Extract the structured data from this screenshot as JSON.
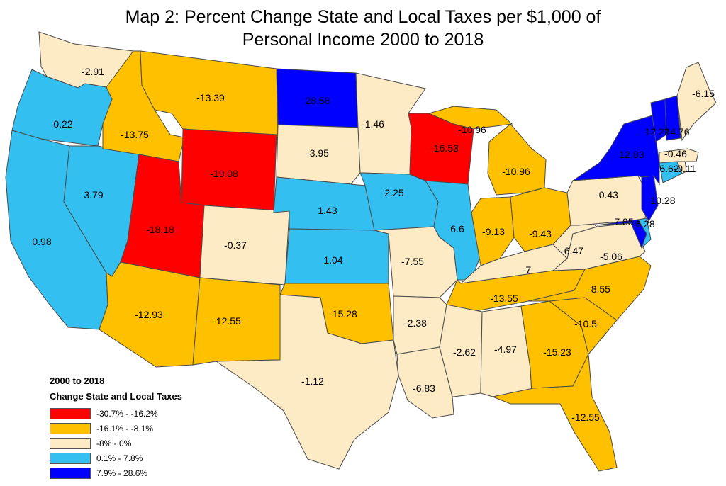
{
  "title_line1": "Map 2: Percent Change State and Local Taxes per $1,000 of",
  "title_line2": "Personal Income 2000 to 2018",
  "legend": {
    "heading1": "2000 to 2018",
    "heading2": "Change State and Local Taxes",
    "classes": [
      {
        "label": "-30.7% - -16.2%",
        "color": "#ff0000"
      },
      {
        "label": "-16.1% - -8.1%",
        "color": "#ffc000"
      },
      {
        "label": "-8% - 0%",
        "color": "#fdebc6"
      },
      {
        "label": "0.1% - 7.8%",
        "color": "#33bff0"
      },
      {
        "label": "7.9% - 28.6%",
        "color": "#0000ff"
      }
    ]
  },
  "states": [
    {
      "id": "WA",
      "value": "-2.91",
      "cls": 2
    },
    {
      "id": "OR",
      "value": "0.22",
      "cls": 3
    },
    {
      "id": "CA",
      "value": "0.98",
      "cls": 3
    },
    {
      "id": "NV",
      "value": "3.79",
      "cls": 3
    },
    {
      "id": "ID",
      "value": "-13.75",
      "cls": 1
    },
    {
      "id": "MT",
      "value": "-13.39",
      "cls": 1
    },
    {
      "id": "WY",
      "value": "-19.08",
      "cls": 0
    },
    {
      "id": "UT",
      "value": "-18.18",
      "cls": 0
    },
    {
      "id": "AZ",
      "value": "-12.93",
      "cls": 1
    },
    {
      "id": "CO",
      "value": "-0.37",
      "cls": 2
    },
    {
      "id": "NM",
      "value": "-12.55",
      "cls": 1
    },
    {
      "id": "ND",
      "value": "28.58",
      "cls": 4
    },
    {
      "id": "SD",
      "value": "-3.95",
      "cls": 2
    },
    {
      "id": "NE",
      "value": "1.43",
      "cls": 3
    },
    {
      "id": "KS",
      "value": "1.04",
      "cls": 3
    },
    {
      "id": "OK",
      "value": "-15.28",
      "cls": 1
    },
    {
      "id": "TX",
      "value": "-1.12",
      "cls": 2
    },
    {
      "id": "MN",
      "value": "-1.46",
      "cls": 2
    },
    {
      "id": "IA",
      "value": "2.25",
      "cls": 3
    },
    {
      "id": "MO",
      "value": "-7.55",
      "cls": 2
    },
    {
      "id": "AR",
      "value": "-2.38",
      "cls": 2
    },
    {
      "id": "LA",
      "value": "-6.83",
      "cls": 2
    },
    {
      "id": "WI",
      "value": "-16.53",
      "cls": 0
    },
    {
      "id": "IL",
      "value": "6.6",
      "cls": 3
    },
    {
      "id": "MI_UP",
      "value": "-10.96",
      "cls": 1
    },
    {
      "id": "MI",
      "value": "-10.96",
      "cls": 1
    },
    {
      "id": "IN",
      "value": "-9.13",
      "cls": 1
    },
    {
      "id": "OH",
      "value": "-9.43",
      "cls": 1
    },
    {
      "id": "KY",
      "value": "-7",
      "cls": 2
    },
    {
      "id": "TN",
      "value": "-13.55",
      "cls": 1
    },
    {
      "id": "MS",
      "value": "-2.62",
      "cls": 2
    },
    {
      "id": "AL",
      "value": "-4.97",
      "cls": 2
    },
    {
      "id": "GA",
      "value": "-15.23",
      "cls": 1
    },
    {
      "id": "FL",
      "value": "-12.55",
      "cls": 1
    },
    {
      "id": "SC",
      "value": "-10.5",
      "cls": 1
    },
    {
      "id": "NC",
      "value": "-8.55",
      "cls": 1
    },
    {
      "id": "VA",
      "value": "-5.06",
      "cls": 2
    },
    {
      "id": "WV",
      "value": "-6.47",
      "cls": 2
    },
    {
      "id": "PA",
      "value": "-0.43",
      "cls": 2
    },
    {
      "id": "MD",
      "value": "7.85",
      "cls": 4
    },
    {
      "id": "DE",
      "value": "6.28",
      "cls": 3
    },
    {
      "id": "NJ",
      "value": "10.28",
      "cls": 4
    },
    {
      "id": "NY",
      "value": "12.83",
      "cls": 4
    },
    {
      "id": "CT",
      "value": "6.62",
      "cls": 3
    },
    {
      "id": "RI",
      "value": "-0.11",
      "cls": 2
    },
    {
      "id": "MA",
      "value": "-0.46",
      "cls": 2
    },
    {
      "id": "VT",
      "value": "12.22",
      "cls": 4
    },
    {
      "id": "NH",
      "value": "14.76",
      "cls": 4
    },
    {
      "id": "ME",
      "value": "-6.15",
      "cls": 2
    }
  ]
}
